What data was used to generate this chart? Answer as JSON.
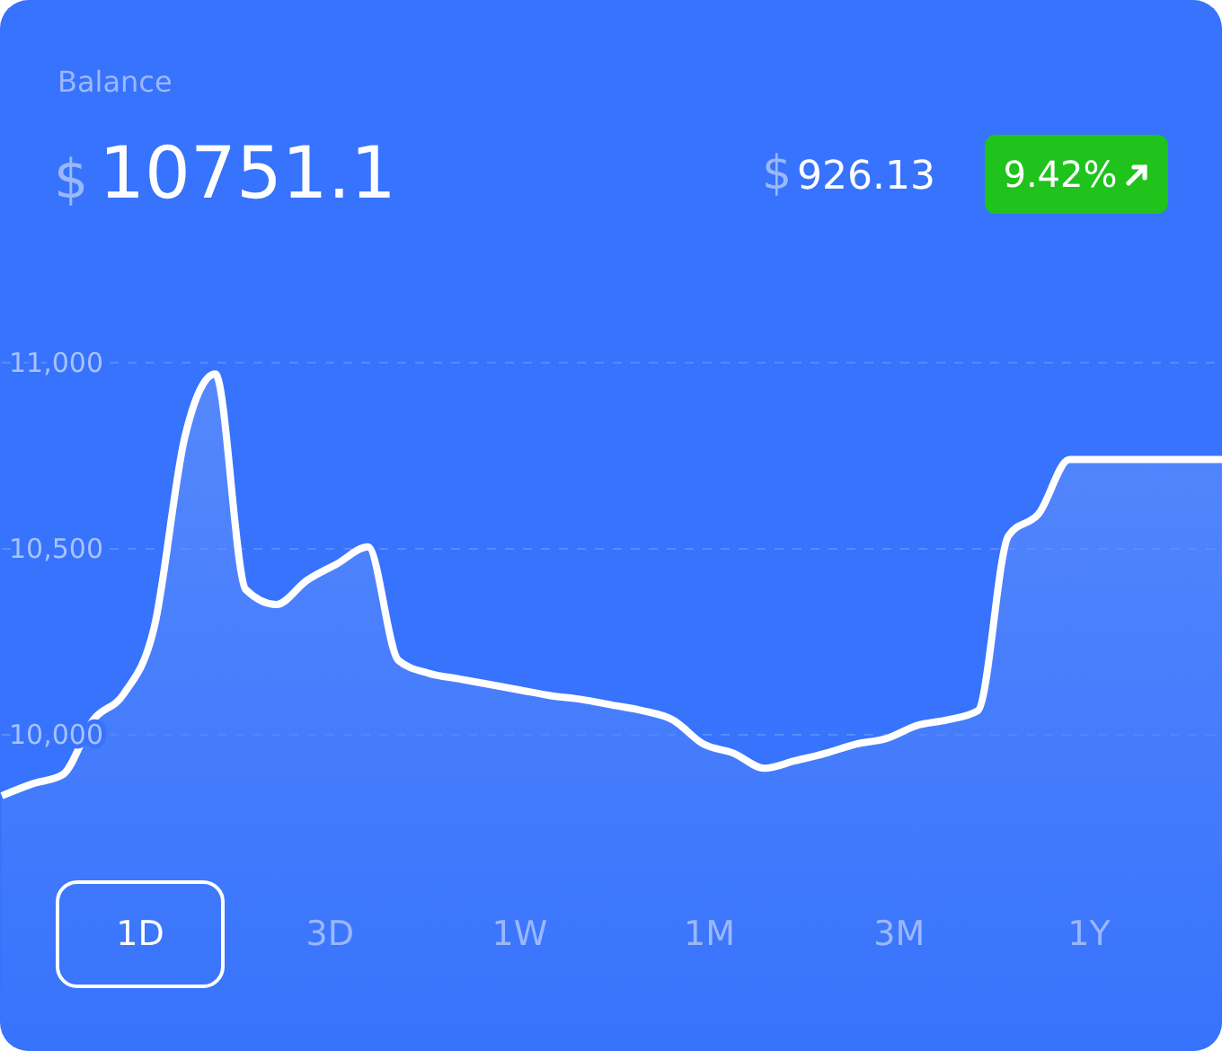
{
  "chart_data": {
    "type": "area",
    "title": "Balance",
    "subtitle": "$10751.1",
    "annotations": [
      "$926.13",
      "9.42%",
      "1D",
      "3D",
      "1W",
      "1M",
      "3M",
      "1Y"
    ],
    "categories": [
      null,
      null,
      null,
      null,
      null,
      null,
      null,
      null,
      null,
      null,
      null,
      null,
      null,
      null,
      null,
      null,
      null,
      null,
      null,
      null,
      null,
      null,
      null,
      null,
      null,
      null,
      null,
      null,
      null,
      null,
      null,
      null,
      null,
      null,
      null,
      null,
      null,
      null,
      null,
      null,
      null
    ],
    "series": [
      {
        "color": "#ffffff",
        "values": [
          9836,
          9868,
          9893,
          10040,
          10110,
          10290,
          10800,
          10970,
          10390,
          10350,
          10415,
          10460,
          10505,
          10200,
          10165,
          10150,
          10135,
          10120,
          10105,
          10095,
          10080,
          10065,
          10040,
          9975,
          9950,
          9910,
          9930,
          9950,
          9975,
          9990,
          10025,
          10040,
          10065,
          10535,
          10595,
          10740,
          10740,
          10740,
          10740,
          10740,
          10740
        ]
      }
    ],
    "ylim": [
      9150,
      11975
    ],
    "yticks": [
      {
        "value": 10000,
        "label": "10,000"
      },
      {
        "value": 10500,
        "label": "10,500"
      },
      {
        "value": 11000,
        "label": "11,000"
      }
    ],
    "grid": "y",
    "line_style": "solid",
    "marker": "none",
    "legend": false
  }
}
